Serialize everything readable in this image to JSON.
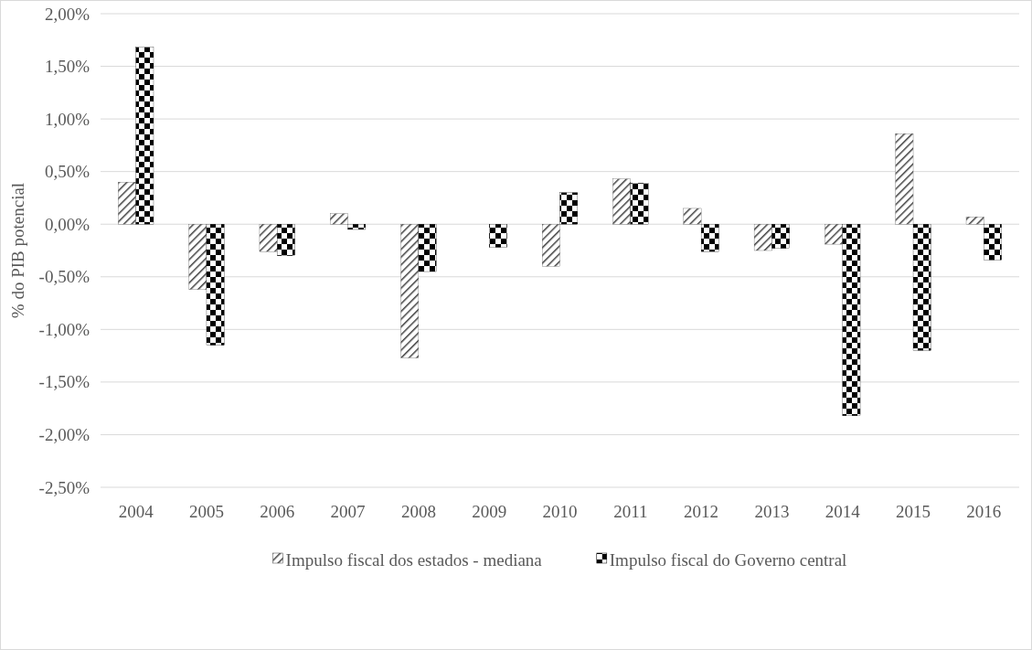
{
  "chart_data": {
    "type": "bar",
    "ylabel": "% do PIB potencial",
    "categories": [
      "2004",
      "2005",
      "2006",
      "2007",
      "2008",
      "2009",
      "2010",
      "2011",
      "2012",
      "2013",
      "2014",
      "2015",
      "2016"
    ],
    "series": [
      {
        "name": "Impulso fiscal dos estados - mediana",
        "color": "#404040",
        "values": [
          0.4,
          -0.62,
          -0.26,
          0.1,
          -1.27,
          0.0,
          -0.4,
          0.43,
          0.15,
          -0.25,
          -0.19,
          0.86,
          0.07
        ]
      },
      {
        "name": "Impulso fiscal do Governo central",
        "color": "#000000",
        "values": [
          1.68,
          -1.15,
          -0.3,
          -0.05,
          -0.45,
          -0.22,
          0.3,
          0.39,
          -0.26,
          -0.23,
          -1.82,
          -1.2,
          -0.34
        ]
      }
    ],
    "ylim": [
      -2.5,
      2.0
    ],
    "yticks": [
      {
        "value": -2.5,
        "label": "-2,50%"
      },
      {
        "value": -2.0,
        "label": "-2,00%"
      },
      {
        "value": -1.5,
        "label": "-1,50%"
      },
      {
        "value": -1.0,
        "label": "-1,00%"
      },
      {
        "value": -0.5,
        "label": "-0,50%"
      },
      {
        "value": 0,
        "label": "0,00%"
      },
      {
        "value": 0.5,
        "label": "0,50%"
      },
      {
        "value": 1.0,
        "label": "1,00%"
      },
      {
        "value": 1.5,
        "label": "1,50%"
      },
      {
        "value": 2.0,
        "label": "2,00%"
      }
    ],
    "grid": "y",
    "legend": "bottom"
  }
}
